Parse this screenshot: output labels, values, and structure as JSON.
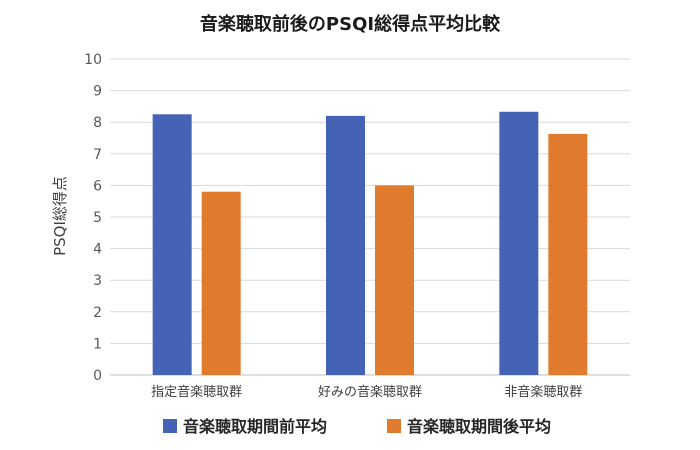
{
  "chart_data": {
    "type": "bar",
    "title": "音楽聴取前後のPSQI総得点平均比較",
    "xlabel": "",
    "ylabel": "PSQI総得点",
    "ylim": [
      0,
      10
    ],
    "yticks": [
      0,
      1,
      2,
      3,
      4,
      5,
      6,
      7,
      8,
      9,
      10
    ],
    "grid": true,
    "legend_position": "bottom",
    "categories": [
      "指定音楽聴取群",
      "好みの音楽聴取群",
      "非音楽聴取群"
    ],
    "series": [
      {
        "name": "音楽聴取期間前平均",
        "color": "#4563B5",
        "values": [
          8.25,
          8.2,
          8.33
        ]
      },
      {
        "name": "音楽聴取期間後平均",
        "color": "#E07B2E",
        "values": [
          5.8,
          6.0,
          7.63
        ]
      }
    ]
  }
}
